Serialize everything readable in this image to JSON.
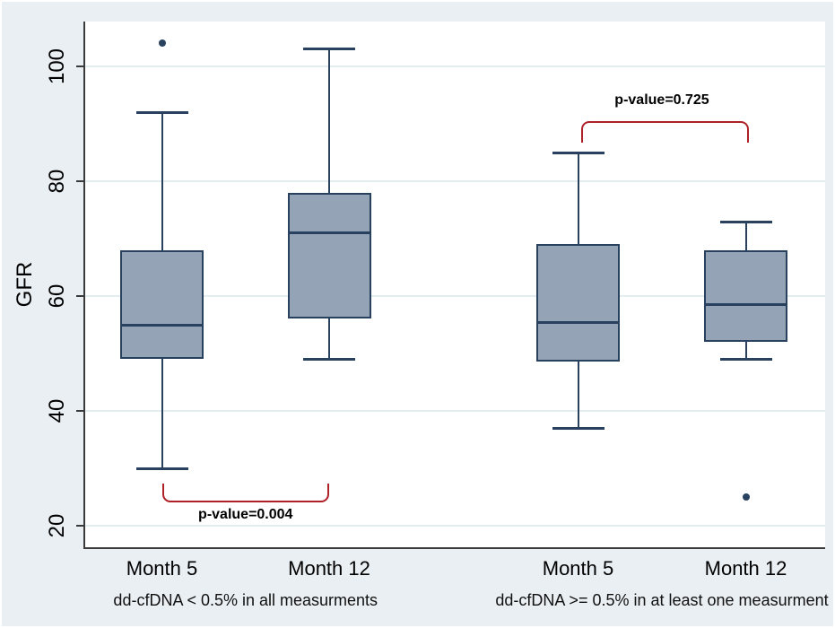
{
  "chart_data": {
    "type": "box",
    "title": "",
    "ylabel": "GFR",
    "xlabel": "",
    "yticks": [
      20,
      40,
      60,
      80,
      100
    ],
    "ylim": [
      16,
      108
    ],
    "grid": true,
    "groups": [
      {
        "label": "dd-cfDNA < 0.5% in all measurments",
        "boxes": [
          {
            "category": "Month 5",
            "whisker_low": 30,
            "q1": 49,
            "median": 55,
            "q3": 68,
            "whisker_high": 92,
            "outliers": [
              104
            ]
          },
          {
            "category": "Month 12",
            "whisker_low": 49,
            "q1": 56,
            "median": 71,
            "q3": 78,
            "whisker_high": 103,
            "outliers": []
          }
        ],
        "annotation": {
          "text": "p-value=0.004",
          "position": "below"
        }
      },
      {
        "label": "dd-cfDNA >= 0.5% in at least one measurment",
        "boxes": [
          {
            "category": "Month 5",
            "whisker_low": 37,
            "q1": 48.5,
            "median": 55.5,
            "q3": 69,
            "whisker_high": 85,
            "outliers": []
          },
          {
            "category": "Month 12",
            "whisker_low": 49,
            "q1": 52,
            "median": 58.5,
            "q3": 68,
            "whisker_high": 73,
            "outliers": [
              25
            ]
          }
        ],
        "annotation": {
          "text": "p-value=0.725",
          "position": "above"
        }
      }
    ],
    "colors": {
      "background": "#eaeff3",
      "plot_bg": "#ffffff",
      "grid": "#e3eef3",
      "axis": "#3a3a3a",
      "box_fill": "#94a3b6",
      "box_border": "#27415e",
      "bracket": "#ae2127",
      "text": "#000000"
    }
  }
}
